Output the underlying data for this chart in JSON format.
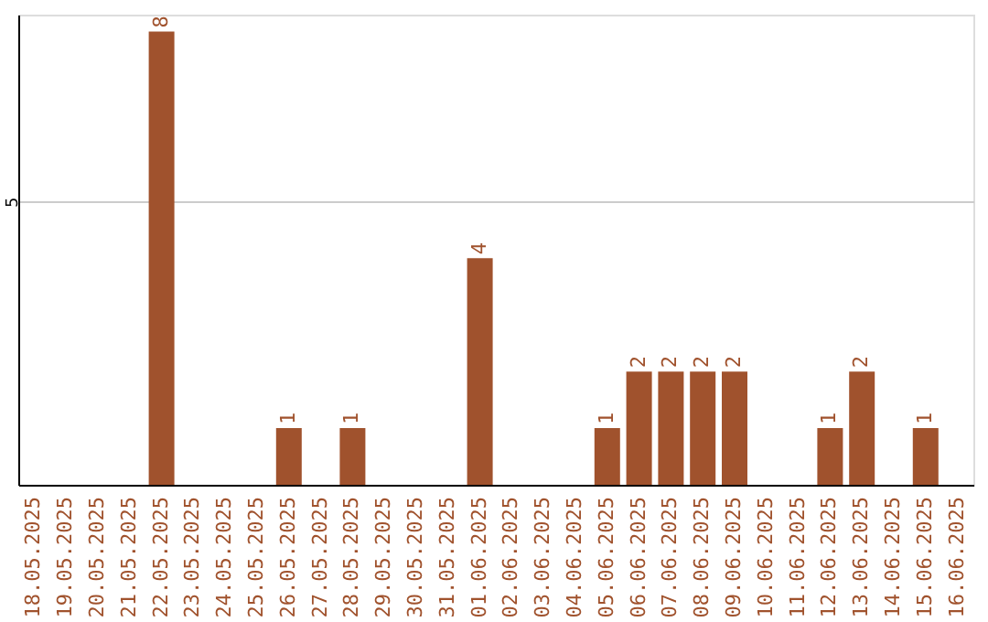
{
  "chart_data": {
    "type": "bar",
    "categories": [
      "18.05.2025",
      "19.05.2025",
      "20.05.2025",
      "21.05.2025",
      "22.05.2025",
      "23.05.2025",
      "24.05.2025",
      "25.05.2025",
      "26.05.2025",
      "27.05.2025",
      "28.05.2025",
      "29.05.2025",
      "30.05.2025",
      "31.05.2025",
      "01.06.2025",
      "02.06.2025",
      "03.06.2025",
      "04.06.2025",
      "05.06.2025",
      "06.06.2025",
      "07.06.2025",
      "08.06.2025",
      "09.06.2025",
      "10.06.2025",
      "11.06.2025",
      "12.06.2025",
      "13.06.2025",
      "14.06.2025",
      "15.06.2025",
      "16.06.2025"
    ],
    "values": [
      0,
      0,
      0,
      0,
      8,
      0,
      0,
      0,
      1,
      0,
      1,
      0,
      0,
      0,
      4,
      0,
      0,
      0,
      1,
      2,
      2,
      2,
      2,
      0,
      0,
      1,
      2,
      0,
      1,
      0
    ],
    "value_labels": [
      null,
      null,
      null,
      null,
      "8",
      null,
      null,
      null,
      "1",
      null,
      "1",
      null,
      null,
      null,
      "4",
      null,
      null,
      null,
      "1",
      "2",
      "2",
      "2",
      "2",
      null,
      null,
      "1",
      "2",
      null,
      "1",
      null
    ],
    "color": "#a0522d",
    "ylim": [
      0,
      8.3
    ],
    "yticks": [
      5
    ],
    "grid": "y"
  }
}
